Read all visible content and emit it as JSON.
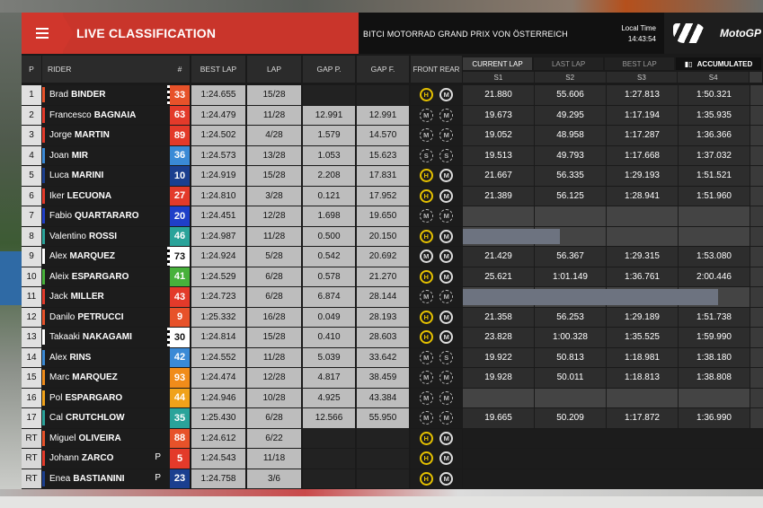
{
  "header": {
    "menu_icon": "menu-icon",
    "title": "LIVE CLASSIFICATION",
    "event": "BITCI MOTORRAD GRAND PRIX VON ÖSTERREICH",
    "local_time_label": "Local Time",
    "local_time": "14:43:54",
    "logo_text": "MotoGP"
  },
  "columns": {
    "pos": "P",
    "rider": "RIDER",
    "num": "#",
    "best_lap": "BEST LAP",
    "lap": "LAP",
    "gap_p": "GAP P.",
    "gap_f": "GAP F.",
    "tyres": "FRONT REAR"
  },
  "tabs": {
    "current_lap": "CURRENT LAP",
    "last_lap": "LAST LAP",
    "best_lap": "BEST LAP",
    "accumulated": "ACCUMULATED"
  },
  "sectors": [
    "S1",
    "S2",
    "S3",
    "S4"
  ],
  "colors": {
    "header_red": "#c9352b",
    "tyre_hard": "#e5c100",
    "tyre_medium": "#dddddd",
    "tyre_soft": "#3c7bd6"
  },
  "rows": [
    {
      "pos": "1",
      "first": "Brad",
      "last": "BINDER",
      "num": "33",
      "num_color": "#e7522a",
      "flag_color": "#e7522a",
      "best": "1:24.655",
      "lap": "15/28",
      "gap_p": "",
      "gap_f": "",
      "front": "H",
      "rear": "M",
      "s1": "21.880",
      "s2": "55.606",
      "s3": "1:27.813",
      "s4": "1:50.321"
    },
    {
      "pos": "2",
      "first": "Francesco",
      "last": "BAGNAIA",
      "num": "63",
      "num_color": "#e33a2a",
      "flag_color": "#e33a2a",
      "best": "1:24.479",
      "lap": "11/28",
      "gap_p": "12.991",
      "gap_f": "12.991",
      "front": "M-",
      "rear": "M-",
      "s1": "19.673",
      "s2": "49.295",
      "s3": "1:17.194",
      "s4": "1:35.935"
    },
    {
      "pos": "3",
      "first": "Jorge",
      "last": "MARTIN",
      "num": "89",
      "num_color": "#e33a2a",
      "flag_color": "#e33a2a",
      "best": "1:24.502",
      "lap": "4/28",
      "gap_p": "1.579",
      "gap_f": "14.570",
      "front": "M-",
      "rear": "M-",
      "s1": "19.052",
      "s2": "48.958",
      "s3": "1:17.287",
      "s4": "1:36.366"
    },
    {
      "pos": "4",
      "first": "Joan",
      "last": "MIR",
      "num": "36",
      "num_color": "#3a8ad6",
      "flag_color": "#3a8ad6",
      "best": "1:24.573",
      "lap": "13/28",
      "gap_p": "1.053",
      "gap_f": "15.623",
      "front": "S-",
      "rear": "S-",
      "s1": "19.513",
      "s2": "49.793",
      "s3": "1:17.668",
      "s4": "1:37.032"
    },
    {
      "pos": "5",
      "first": "Luca",
      "last": "MARINI",
      "num": "10",
      "num_color": "#1b3f8f",
      "flag_color": "#1b3f8f",
      "best": "1:24.919",
      "lap": "15/28",
      "gap_p": "2.208",
      "gap_f": "17.831",
      "front": "H",
      "rear": "M",
      "s1": "21.667",
      "s2": "56.335",
      "s3": "1:29.193",
      "s4": "1:51.521"
    },
    {
      "pos": "6",
      "first": "Iker",
      "last": "LECUONA",
      "num": "27",
      "num_color": "#e33a2a",
      "flag_color": "#e33a2a",
      "best": "1:24.810",
      "lap": "3/28",
      "gap_p": "0.121",
      "gap_f": "17.952",
      "front": "H",
      "rear": "M",
      "s1": "21.389",
      "s2": "56.125",
      "s3": "1:28.941",
      "s4": "1:51.960"
    },
    {
      "pos": "7",
      "first": "Fabio",
      "last": "QUARTARARO",
      "num": "20",
      "num_color": "#1f3fc8",
      "flag_color": "#1f3fc8",
      "best": "1:24.451",
      "lap": "12/28",
      "gap_p": "1.698",
      "gap_f": "19.650",
      "front": "M-",
      "rear": "M-",
      "s1": "",
      "s2": "",
      "s3": "",
      "s4": ""
    },
    {
      "pos": "8",
      "first": "Valentino",
      "last": "ROSSI",
      "num": "46",
      "num_color": "#2aa39a",
      "flag_color": "#2aa39a",
      "best": "1:24.987",
      "lap": "11/28",
      "gap_p": "0.500",
      "gap_f": "20.150",
      "front": "H",
      "rear": "M",
      "s1": "",
      "s2": "",
      "s3": "",
      "s4": "",
      "bar": 1.35
    },
    {
      "pos": "9",
      "first": "Alex",
      "last": "MARQUEZ",
      "num": "73",
      "num_color": "#ffffff",
      "num_text": "#111111",
      "flag_color": "#ffffff",
      "best": "1:24.924",
      "lap": "5/28",
      "gap_p": "0.542",
      "gap_f": "20.692",
      "front": "M",
      "rear": "M",
      "s1": "21.429",
      "s2": "56.367",
      "s3": "1:29.315",
      "s4": "1:53.080"
    },
    {
      "pos": "10",
      "first": "Aleix",
      "last": "ESPARGARO",
      "num": "41",
      "num_color": "#47b13b",
      "flag_color": "#47b13b",
      "best": "1:24.529",
      "lap": "6/28",
      "gap_p": "0.578",
      "gap_f": "21.270",
      "front": "H",
      "rear": "M",
      "s1": "25.621",
      "s2": "1:01.149",
      "s3": "1:36.761",
      "s4": "2:00.446"
    },
    {
      "pos": "11",
      "first": "Jack",
      "last": "MILLER",
      "num": "43",
      "num_color": "#e33a2a",
      "flag_color": "#e33a2a",
      "best": "1:24.723",
      "lap": "6/28",
      "gap_p": "6.874",
      "gap_f": "28.144",
      "front": "M-",
      "rear": "M-",
      "s1": "",
      "s2": "",
      "s3": "",
      "s4": "",
      "bar": 3.55
    },
    {
      "pos": "12",
      "first": "Danilo",
      "last": "PETRUCCI",
      "num": "9",
      "num_color": "#e7522a",
      "flag_color": "#e7522a",
      "best": "1:25.332",
      "lap": "16/28",
      "gap_p": "0.049",
      "gap_f": "28.193",
      "front": "H",
      "rear": "M",
      "s1": "21.358",
      "s2": "56.253",
      "s3": "1:29.189",
      "s4": "1:51.738"
    },
    {
      "pos": "13",
      "first": "Takaaki",
      "last": "NAKAGAMI",
      "num": "30",
      "num_color": "#ffffff",
      "num_text": "#111111",
      "flag_color": "#ffffff",
      "best": "1:24.814",
      "lap": "15/28",
      "gap_p": "0.410",
      "gap_f": "28.603",
      "front": "H",
      "rear": "M",
      "s1": "23.828",
      "s2": "1:00.328",
      "s3": "1:35.525",
      "s4": "1:59.990"
    },
    {
      "pos": "14",
      "first": "Alex",
      "last": "RINS",
      "num": "42",
      "num_color": "#3a8ad6",
      "flag_color": "#3a8ad6",
      "best": "1:24.552",
      "lap": "11/28",
      "gap_p": "5.039",
      "gap_f": "33.642",
      "front": "M-",
      "rear": "S-",
      "s1": "19.922",
      "s2": "50.813",
      "s3": "1:18.981",
      "s4": "1:38.180"
    },
    {
      "pos": "15",
      "first": "Marc",
      "last": "MARQUEZ",
      "num": "93",
      "num_color": "#f08c1a",
      "flag_color": "#f08c1a",
      "best": "1:24.474",
      "lap": "12/28",
      "gap_p": "4.817",
      "gap_f": "38.459",
      "front": "M-",
      "rear": "M-",
      "s1": "19.928",
      "s2": "50.011",
      "s3": "1:18.813",
      "s4": "1:38.808"
    },
    {
      "pos": "16",
      "first": "Pol",
      "last": "ESPARGARO",
      "num": "44",
      "num_color": "#f0a21a",
      "flag_color": "#f0a21a",
      "best": "1:24.946",
      "lap": "10/28",
      "gap_p": "4.925",
      "gap_f": "43.384",
      "front": "M-",
      "rear": "M-",
      "s1": "",
      "s2": "",
      "s3": "",
      "s4": ""
    },
    {
      "pos": "17",
      "first": "Cal",
      "last": "CRUTCHLOW",
      "num": "35",
      "num_color": "#2aa39a",
      "flag_color": "#2aa39a",
      "best": "1:25.430",
      "lap": "6/28",
      "gap_p": "12.566",
      "gap_f": "55.950",
      "front": "M-",
      "rear": "M-",
      "s1": "19.665",
      "s2": "50.209",
      "s3": "1:17.872",
      "s4": "1:36.990"
    },
    {
      "pos": "RT",
      "first": "Miguel",
      "last": "OLIVEIRA",
      "num": "88",
      "num_color": "#e7522a",
      "flag_color": "#e7522a",
      "best": "1:24.612",
      "lap": "6/22",
      "gap_p": "",
      "gap_f": "",
      "front": "H",
      "rear": "M",
      "retired": true
    },
    {
      "pos": "RT",
      "first": "Johann",
      "last": "ZARCO",
      "num": "5",
      "num_color": "#e33a2a",
      "flag_color": "#e33a2a",
      "best": "1:24.543",
      "lap": "11/18",
      "gap_p": "",
      "gap_f": "",
      "front": "H",
      "rear": "M",
      "retired": true,
      "pit": "P"
    },
    {
      "pos": "RT",
      "first": "Enea",
      "last": "BASTIANINI",
      "num": "23",
      "num_color": "#1b3f8f",
      "flag_color": "#1b3f8f",
      "best": "1:24.758",
      "lap": "3/6",
      "gap_p": "",
      "gap_f": "",
      "front": "H",
      "rear": "M",
      "retired": true,
      "pit": "P"
    }
  ]
}
